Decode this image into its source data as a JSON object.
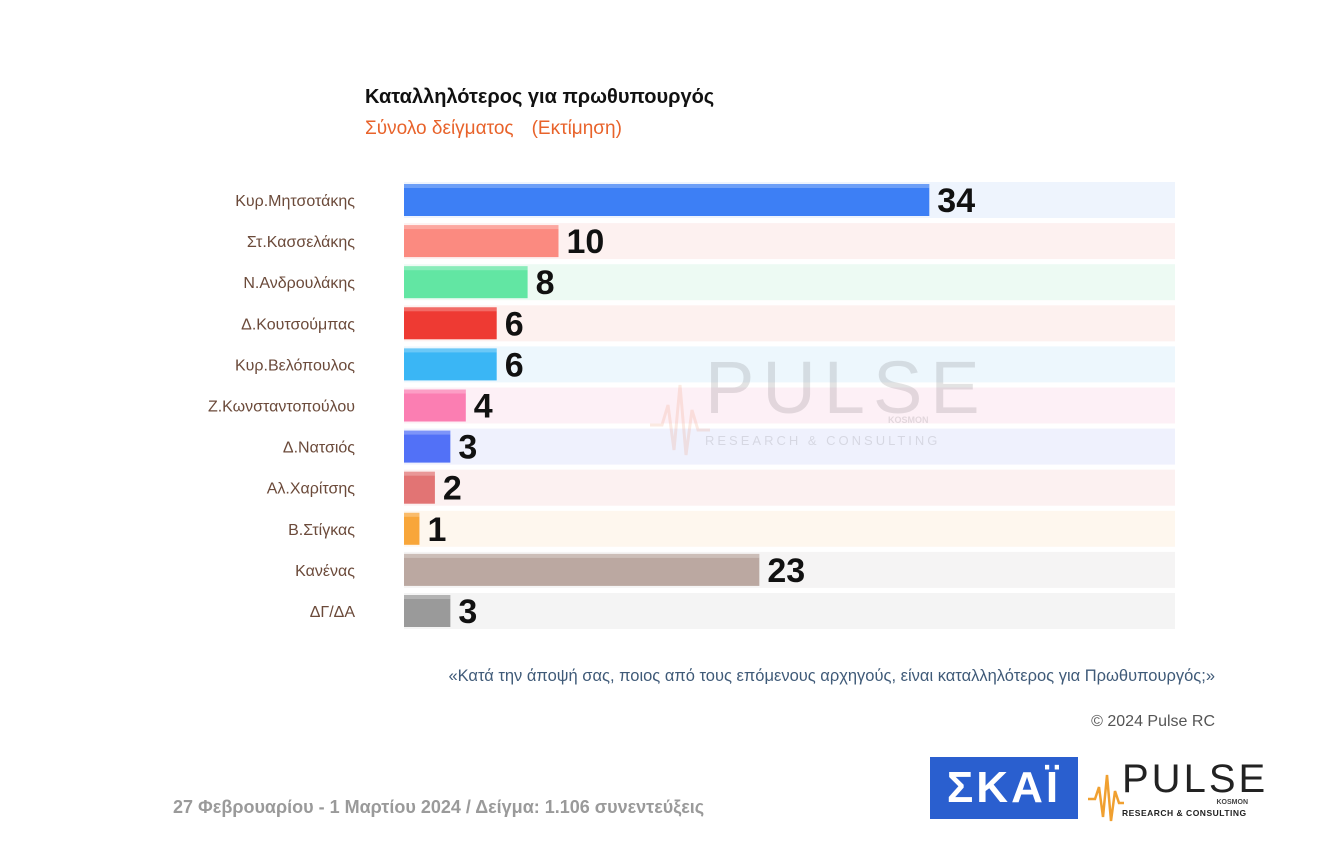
{
  "title": "Καταλληλότερος για πρωθυπουργός",
  "subtitle_left": "Σύνολο δείγματος",
  "subtitle_right": "(Εκτίμηση)",
  "question": "«Κατά την άποψή σας, ποιος από τους επόμενους αρχηγούς, είναι καταλληλότερος για Πρωθυπουργός;»",
  "copyright": "© 2024 Pulse RC",
  "footer": "27 Φεβρουαρίου - 1 Μαρτίου 2024  /  Δείγμα:  1.106 συνεντεύξεις",
  "logos": {
    "skai": "ΣΚΑΪ",
    "pulse": "PULSE",
    "pulse_kosmos": "KOSMON",
    "pulse_sub": "RESEARCH & CONSULTING"
  },
  "watermark": {
    "word": "PULSE",
    "kosmos": "KOSMON",
    "sub": "RESEARCH & CONSULTING"
  },
  "chart_data": {
    "type": "bar",
    "orientation": "horizontal",
    "categories": [
      "Κυρ.Μητσοτάκης",
      "Στ.Κασσελάκης",
      "Ν.Ανδρουλάκης",
      "Δ.Κουτσούμπας",
      "Κυρ.Βελόπουλος",
      "Ζ.Κωνσταντοπούλου",
      "Δ.Νατσιός",
      "Αλ.Χαρίτσης",
      "Β.Στίγκας",
      "Κανένας",
      "ΔΓ/ΔΑ"
    ],
    "values": [
      34,
      10,
      8,
      6,
      6,
      4,
      3,
      2,
      1,
      23,
      3
    ],
    "colors": [
      "#3d7ff5",
      "#fb8a80",
      "#62e6a3",
      "#ee3a33",
      "#3ab6f5",
      "#fb7eb2",
      "#5271f7",
      "#e27474",
      "#f8a63a",
      "#bba8a1",
      "#9a9a9a"
    ],
    "track_colors": [
      "#eef4fd",
      "#fdf1f0",
      "#edfaf3",
      "#fdf1ef",
      "#edf7fd",
      "#fdf0f6",
      "#eff1fd",
      "#fcf1f1",
      "#fef7ee",
      "#f5f4f4",
      "#f4f4f4"
    ],
    "xlim": [
      0,
      50
    ],
    "grid": false,
    "legend": "none"
  }
}
